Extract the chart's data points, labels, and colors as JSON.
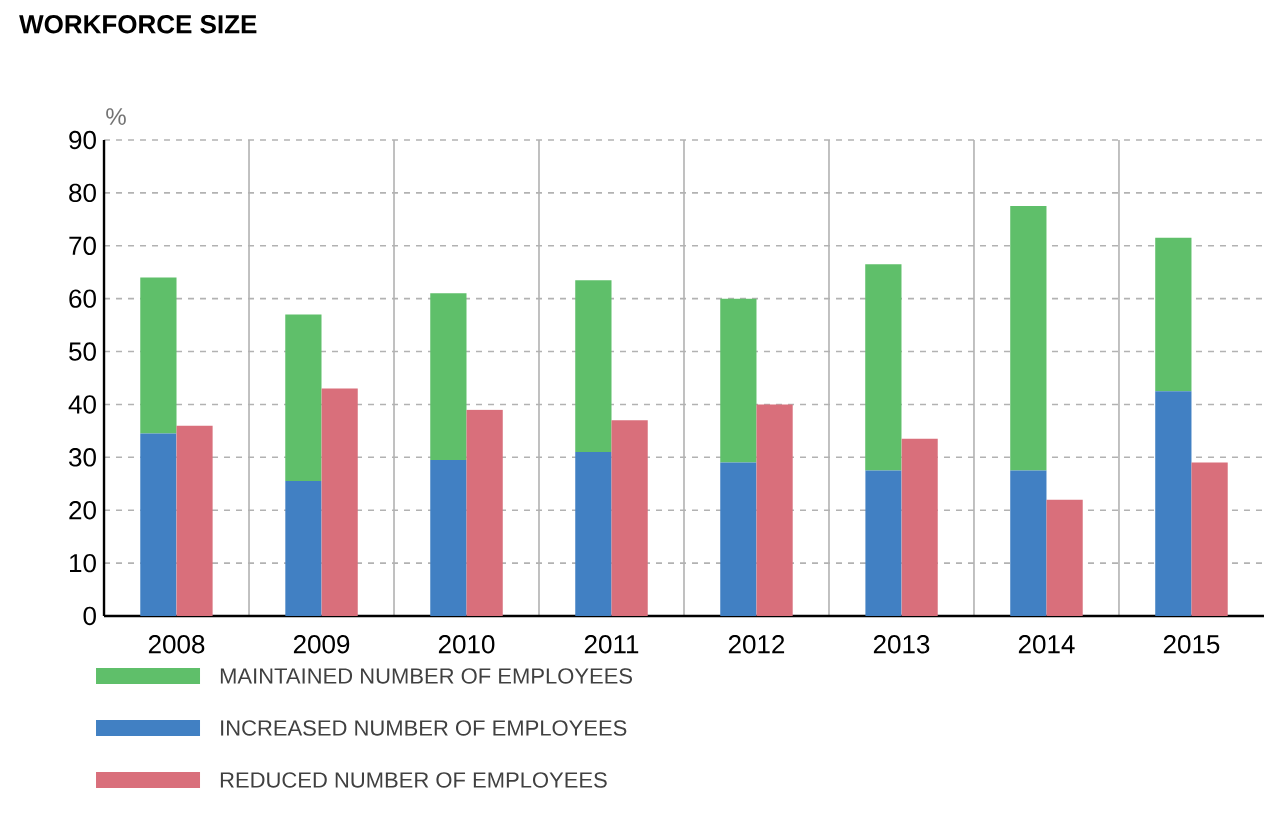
{
  "chart_data": {
    "type": "bar",
    "title": "WORKFORCE SIZE",
    "ylabel": "%",
    "categories": [
      "2008",
      "2009",
      "2010",
      "2011",
      "2012",
      "2013",
      "2014",
      "2015"
    ],
    "series": [
      {
        "name": "MAINTAINED NUMBER OF EMPLOYEES",
        "color": "#5fbf6a",
        "base": [
          34.5,
          25.5,
          29.5,
          31,
          29,
          27.5,
          27.5,
          42.5
        ],
        "values": [
          29.5,
          31.5,
          31.5,
          32.5,
          31,
          39,
          50,
          29
        ]
      },
      {
        "name": "INCREASED NUMBER OF EMPLOYEES",
        "color": "#4180c3",
        "values": [
          34.5,
          25.5,
          29.5,
          31,
          29,
          27.5,
          27.5,
          42.5
        ]
      },
      {
        "name": "REDUCED NUMBER OF EMPLOYEES",
        "color": "#d96f7b",
        "values": [
          36,
          43,
          39,
          37,
          40,
          33.5,
          22,
          29
        ]
      }
    ],
    "ylim": [
      0,
      90
    ],
    "yticks": [
      0,
      10,
      20,
      30,
      40,
      50,
      60,
      70,
      80,
      90
    ],
    "grid": true,
    "legend": "bottom left"
  }
}
